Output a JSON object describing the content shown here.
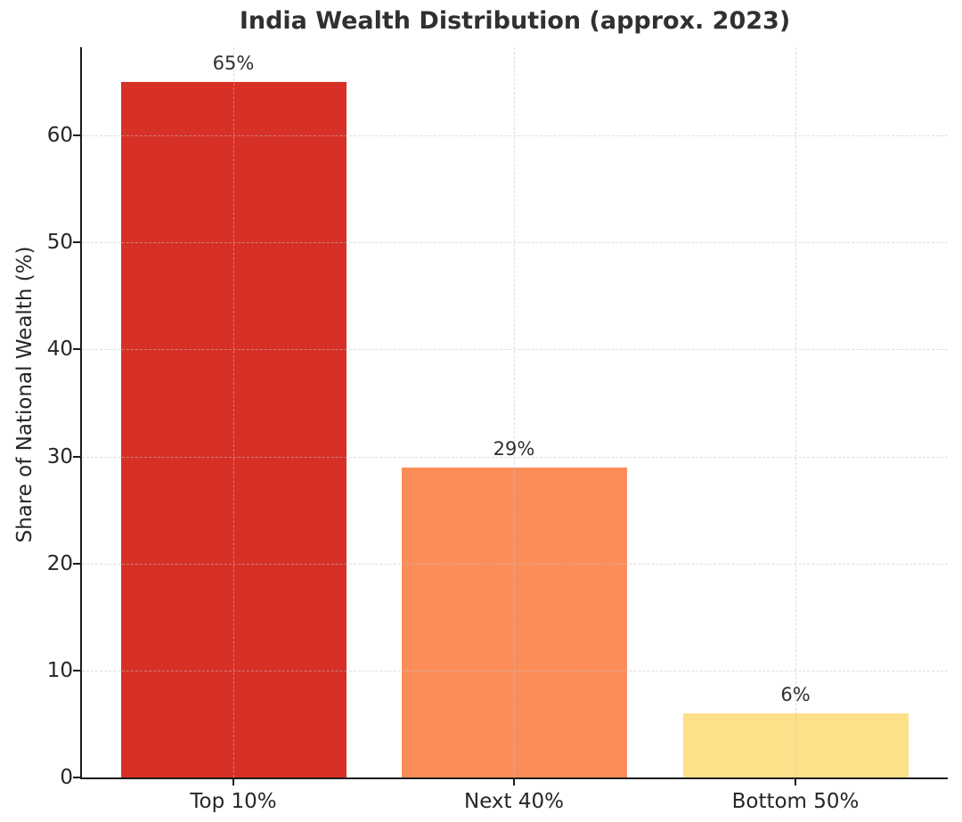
{
  "chart_data": {
    "type": "bar",
    "title": "India Wealth Distribution (approx. 2023)",
    "categories": [
      "Top 10%",
      "Next 40%",
      "Bottom 50%"
    ],
    "values": [
      65,
      29,
      6
    ],
    "bar_labels": [
      "65%",
      "29%",
      "6%"
    ],
    "bar_colors": [
      "#d73027",
      "#fc8d59",
      "#fee08b"
    ],
    "xlabel": "",
    "ylabel": "Share of National Wealth (%)",
    "yticks": [
      0,
      10,
      20,
      30,
      40,
      50,
      60
    ],
    "ylim": [
      0,
      68.25
    ],
    "grid": "both, dashed, drawn over bars",
    "legend": "none",
    "background": "#ffffff"
  }
}
